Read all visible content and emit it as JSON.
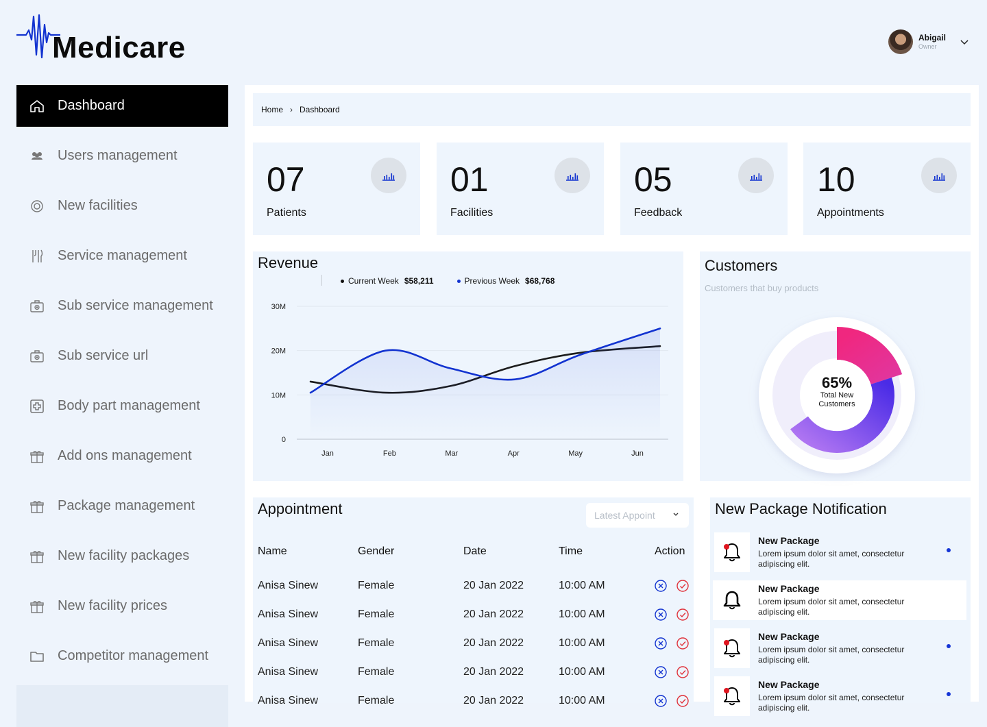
{
  "brand": {
    "name": "Medicare",
    "accent": "#1233d0"
  },
  "user": {
    "name": "Abigail",
    "role": "Owner"
  },
  "sidebar": {
    "items": [
      {
        "label": "Dashboard",
        "icon": "home-icon",
        "active": true
      },
      {
        "label": "Users management",
        "icon": "users-icon"
      },
      {
        "label": "New facilities",
        "icon": "facility-icon"
      },
      {
        "label": "Service management",
        "icon": "tools-icon"
      },
      {
        "label": "Sub service management",
        "icon": "medical-kit-icon"
      },
      {
        "label": "Sub service url",
        "icon": "medical-kit-icon"
      },
      {
        "label": "Body part management",
        "icon": "first-aid-icon"
      },
      {
        "label": "Add ons management",
        "icon": "gift-icon"
      },
      {
        "label": "Package management",
        "icon": "gift-icon"
      },
      {
        "label": "New facility packages",
        "icon": "gift-icon"
      },
      {
        "label": "New facility prices",
        "icon": "gift-icon"
      },
      {
        "label": "Competitor management",
        "icon": "folder-icon"
      }
    ]
  },
  "breadcrumb": {
    "home": "Home",
    "current": "Dashboard"
  },
  "stats": [
    {
      "value": "07",
      "label": "Patients",
      "icon": "bar-chart-icon"
    },
    {
      "value": "01",
      "label": "Facilities",
      "icon": "bar-chart-icon"
    },
    {
      "value": "05",
      "label": "Feedback",
      "icon": "bar-chart-icon"
    },
    {
      "value": "10",
      "label": "Appointments",
      "icon": "bar-chart-icon"
    }
  ],
  "revenue": {
    "title": "Revenue",
    "legend": [
      {
        "name": "Current Week",
        "value": "$58,211",
        "color": "#111111"
      },
      {
        "name": "Previous Week",
        "value": "$68,768",
        "color": "#1233d0"
      }
    ]
  },
  "chart_data": {
    "type": "line",
    "title": "Revenue",
    "categories": [
      "Jan",
      "Feb",
      "Mar",
      "Apr",
      "May",
      "Jun"
    ],
    "y_tick_labels": [
      "0",
      "10M",
      "20M",
      "30M"
    ],
    "ylim": [
      0,
      30
    ],
    "y_unit": "M",
    "grid": true,
    "series": [
      {
        "name": "Current Week",
        "color": "#1c1c1c",
        "values": [
          13,
          10.5,
          12,
          16.5,
          19.5,
          21
        ]
      },
      {
        "name": "Previous Week",
        "color": "#1233d0",
        "values": [
          10.5,
          20,
          16,
          13.5,
          19,
          25
        ]
      }
    ]
  },
  "customers": {
    "title": "Customers",
    "subtitle": "Customers that buy products",
    "percent": "65%",
    "caption_line1": "Total New",
    "caption_line2": "Customers",
    "segments": [
      {
        "fraction": 0.2,
        "color": "#f0277f"
      },
      {
        "fraction": 0.45,
        "color": "#5b2ee6"
      }
    ]
  },
  "appointment": {
    "title": "Appointment",
    "filter_placeholder": "Latest Appoint",
    "columns": [
      "Name",
      "Gender",
      "Date",
      "Time",
      "Action"
    ],
    "rows": [
      {
        "name": "Anisa Sinew",
        "gender": "Female",
        "date": "20 Jan 2022",
        "time": "10:00 AM"
      },
      {
        "name": "Anisa Sinew",
        "gender": "Female",
        "date": "20 Jan 2022",
        "time": "10:00 AM"
      },
      {
        "name": "Anisa Sinew",
        "gender": "Female",
        "date": "20 Jan 2022",
        "time": "10:00 AM"
      },
      {
        "name": "Anisa Sinew",
        "gender": "Female",
        "date": "20 Jan 2022",
        "time": "10:00 AM"
      },
      {
        "name": "Anisa Sinew",
        "gender": "Female",
        "date": "20 Jan 2022",
        "time": "10:00 AM"
      }
    ]
  },
  "notifications": {
    "title": "New Package Notification",
    "items": [
      {
        "title": "New Package",
        "text": "Lorem ipsum dolor sit amet, consectetur adipiscing elit.",
        "unread": true
      },
      {
        "title": "New Package",
        "text": "Lorem ipsum dolor sit amet, consectetur adipiscing elit.",
        "unread": false
      },
      {
        "title": "New Package",
        "text": "Lorem ipsum dolor sit amet, consectetur adipiscing elit.",
        "unread": true
      },
      {
        "title": "New Package",
        "text": "Lorem ipsum dolor sit amet, consectetur adipiscing elit.",
        "unread": true
      }
    ]
  }
}
